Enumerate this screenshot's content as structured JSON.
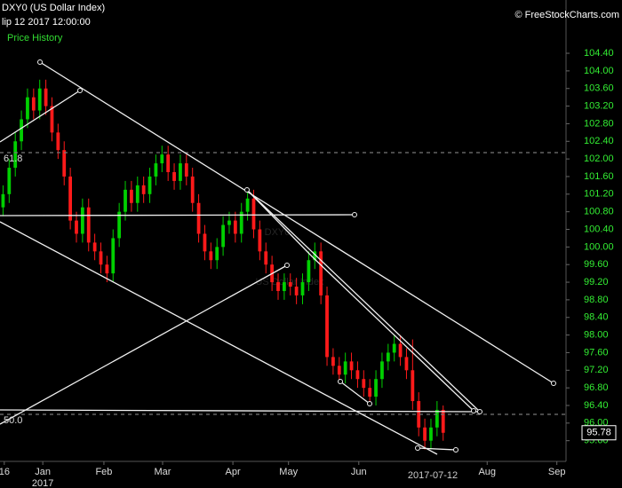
{
  "chart_data": {
    "type": "candlestick",
    "title": "DXY0 (US Dollar Index)",
    "subtitle": "lip 12 2017 12:00:00",
    "legend": "Price History",
    "source": "© FreeStockCharts.com",
    "watermark": "DXY0",
    "watermark_sub": "US Dollar Index",
    "up_color": "#00d000",
    "down_color": "#ff1a1a",
    "annotations": [
      "61.8",
      "50.0"
    ],
    "open": [
      100.9,
      101.2,
      101.8,
      102.4,
      102.9,
      103.4,
      103.1,
      103.6,
      103.2,
      102.6,
      102.2,
      101.6,
      100.6,
      100.3,
      100.9,
      100.1,
      99.9,
      99.6,
      99.4,
      100.2,
      100.8,
      101.3,
      101.0,
      101.4,
      101.2,
      101.6,
      101.9,
      102.1,
      101.7,
      101.5,
      101.9,
      101.6,
      101.0,
      100.3,
      99.9,
      99.7,
      100.0,
      100.5,
      100.6,
      100.3,
      100.8,
      101.1,
      100.4,
      99.9,
      99.6,
      99.2,
      99.0,
      99.2,
      99.1,
      98.9,
      99.2,
      99.7,
      99.9,
      98.9,
      97.5,
      97.3,
      97.1,
      97.4,
      97.2,
      97.0,
      96.8,
      96.6,
      97.0,
      97.4,
      97.6,
      97.8,
      97.5,
      97.2,
      96.5,
      95.9,
      95.6,
      95.9,
      96.3
    ],
    "high": [
      101.4,
      102.0,
      102.6,
      103.1,
      103.6,
      103.6,
      103.8,
      103.8,
      103.4,
      102.8,
      102.4,
      101.8,
      100.8,
      101.1,
      101.1,
      100.3,
      100.1,
      99.8,
      100.4,
      101.0,
      101.5,
      101.5,
      101.6,
      101.6,
      101.8,
      102.1,
      102.3,
      102.3,
      101.9,
      102.1,
      102.1,
      101.8,
      101.2,
      100.5,
      100.1,
      100.2,
      100.7,
      100.8,
      100.8,
      101.0,
      101.3,
      101.3,
      100.6,
      100.1,
      99.8,
      99.4,
      99.4,
      99.4,
      99.3,
      99.4,
      99.9,
      100.1,
      100.1,
      99.1,
      97.7,
      97.5,
      97.6,
      97.6,
      97.4,
      97.2,
      97.0,
      97.2,
      97.6,
      97.8,
      98.0,
      98.0,
      97.7,
      97.9,
      96.7,
      96.1,
      96.1,
      96.5,
      96.4
    ],
    "low": [
      100.7,
      101.0,
      101.6,
      102.2,
      102.7,
      102.9,
      102.9,
      103.0,
      102.4,
      102.0,
      101.4,
      100.4,
      100.1,
      100.1,
      99.9,
      99.7,
      99.4,
      99.2,
      99.2,
      100.0,
      100.6,
      100.8,
      100.8,
      101.0,
      101.0,
      101.4,
      101.7,
      101.5,
      101.3,
      101.3,
      101.4,
      100.8,
      100.1,
      99.7,
      99.5,
      99.5,
      99.8,
      100.3,
      100.1,
      100.1,
      100.6,
      100.2,
      99.7,
      99.4,
      99.0,
      98.8,
      98.8,
      98.9,
      98.7,
      98.7,
      99.0,
      99.5,
      98.7,
      97.3,
      97.1,
      96.9,
      96.9,
      97.0,
      96.8,
      96.6,
      96.4,
      96.4,
      96.8,
      97.2,
      97.4,
      97.3,
      97.0,
      96.3,
      95.7,
      95.4,
      95.4,
      95.7,
      95.6
    ],
    "close": [
      101.2,
      101.8,
      102.4,
      102.9,
      103.4,
      103.1,
      103.6,
      103.2,
      102.6,
      102.2,
      101.6,
      100.6,
      100.3,
      100.9,
      100.1,
      99.9,
      99.6,
      99.4,
      100.2,
      100.8,
      101.3,
      101.0,
      101.4,
      101.2,
      101.6,
      101.9,
      102.1,
      101.7,
      101.5,
      101.9,
      101.6,
      101.0,
      100.3,
      99.9,
      99.7,
      100.0,
      100.5,
      100.6,
      100.3,
      100.8,
      101.1,
      100.4,
      99.9,
      99.6,
      99.2,
      99.0,
      99.2,
      99.1,
      98.9,
      99.2,
      99.7,
      99.9,
      98.9,
      97.5,
      97.3,
      97.1,
      97.4,
      97.2,
      97.0,
      96.8,
      96.6,
      97.0,
      97.4,
      97.6,
      97.8,
      97.5,
      97.2,
      96.5,
      95.9,
      95.6,
      95.9,
      96.3,
      95.78
    ],
    "xlim": [
      -0.5,
      92.1
    ],
    "xticks": [
      {
        "value": 0.2,
        "label": "16"
      },
      {
        "value": 6.5,
        "label": "Jan"
      },
      {
        "value": 16.5,
        "label": "Feb"
      },
      {
        "value": 26.1,
        "label": "Mar"
      },
      {
        "value": 37.6,
        "label": "Apr"
      },
      {
        "value": 46.7,
        "label": "May"
      },
      {
        "value": 58.2,
        "label": "Jun"
      },
      {
        "value": 79.2,
        "label": "Aug"
      },
      {
        "value": 90.6,
        "label": "Sep"
      }
    ],
    "xticks_year": [
      {
        "value": 6.5,
        "label": "2017"
      }
    ],
    "cursor": {
      "value": 70.3,
      "label": "2017-07-12"
    },
    "ylim": [
      95.13,
      105.61
    ],
    "yticks": [
      {
        "value": 95.6,
        "label": "95.60"
      },
      {
        "value": 96,
        "label": "96.00"
      },
      {
        "value": 96.4,
        "label": "96.40"
      },
      {
        "value": 96.8,
        "label": "96.80"
      },
      {
        "value": 97.2,
        "label": "97.20"
      },
      {
        "value": 97.6,
        "label": "97.60"
      },
      {
        "value": 98,
        "label": "98.00"
      },
      {
        "value": 98.4,
        "label": "98.40"
      },
      {
        "value": 98.8,
        "label": "98.80"
      },
      {
        "value": 99.2,
        "label": "99.20"
      },
      {
        "value": 99.6,
        "label": "99.60"
      },
      {
        "value": 100,
        "label": "100.00"
      },
      {
        "value": 100.4,
        "label": "100.40"
      },
      {
        "value": 100.8,
        "label": "100.80"
      },
      {
        "value": 101.2,
        "label": "101.20"
      },
      {
        "value": 101.6,
        "label": "101.60"
      },
      {
        "value": 102,
        "label": "102.00"
      },
      {
        "value": 102.4,
        "label": "102.40"
      },
      {
        "value": 102.8,
        "label": "102.80"
      },
      {
        "value": 103.2,
        "label": "103.20"
      },
      {
        "value": 103.6,
        "label": "103.60"
      },
      {
        "value": 104,
        "label": "104.00"
      },
      {
        "value": 104.4,
        "label": "104.40"
      }
    ]
  }
}
